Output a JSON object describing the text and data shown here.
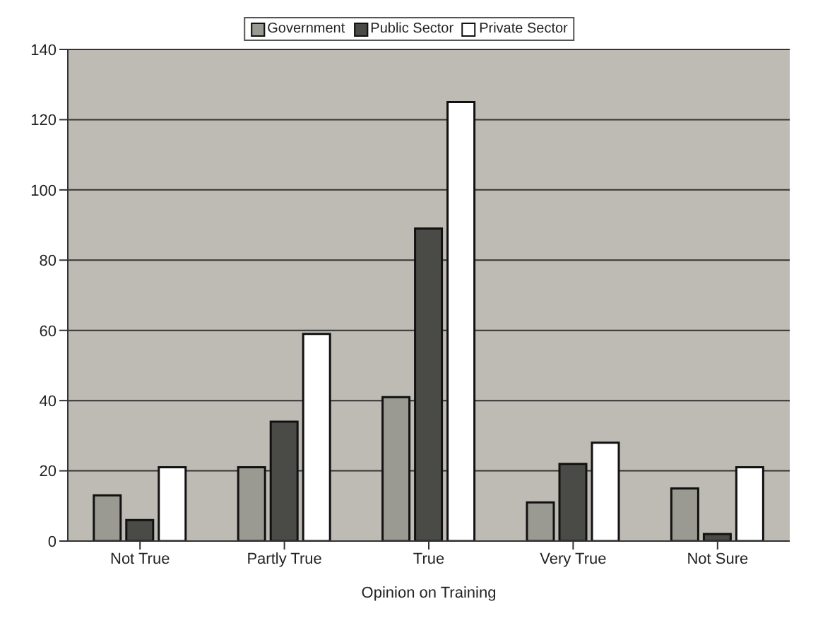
{
  "chart_data": {
    "type": "bar",
    "xlabel": "Opinion on Training",
    "categories": [
      "Not True",
      "Partly True",
      "True",
      "Very True",
      "Not Sure"
    ],
    "series": [
      {
        "name": "Government",
        "color": "#9a9a92",
        "values": [
          13,
          21,
          41,
          11,
          15
        ]
      },
      {
        "name": "Public Sector",
        "color": "#4a4a47",
        "values": [
          6,
          34,
          89,
          22,
          2
        ]
      },
      {
        "name": "Private Sector",
        "color": "#ffffff",
        "values": [
          21,
          59,
          125,
          28,
          21
        ]
      }
    ],
    "ylim": [
      0,
      140
    ],
    "yticks": [
      0,
      20,
      40,
      60,
      80,
      100,
      120,
      140
    ],
    "grid": "y",
    "legend": "top"
  }
}
